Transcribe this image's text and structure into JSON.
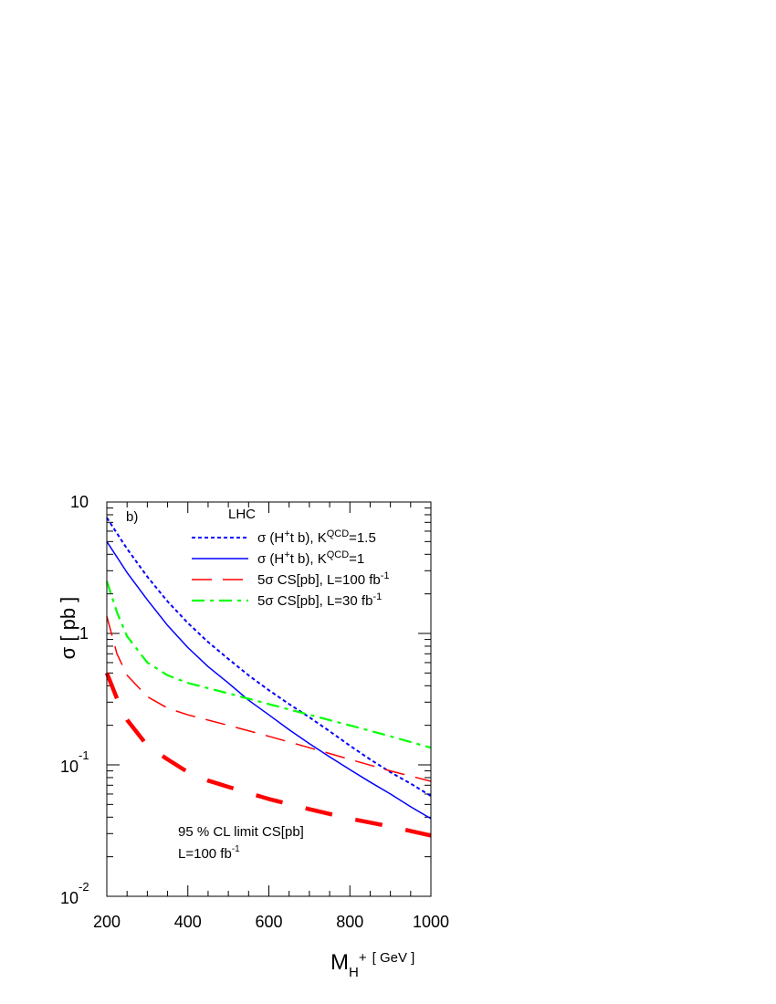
{
  "chart_data": {
    "type": "line",
    "panel_label": "b)",
    "collider_label": "LHC",
    "xlabel": {
      "main": "M",
      "sub": "H",
      "sup": "+",
      "unit": "[ GeV ]"
    },
    "ylabel": "σ [ pb ]",
    "xlim": [
      200,
      1000
    ],
    "ylim": [
      0.01,
      10
    ],
    "yscale": "log",
    "x_ticks": [
      200,
      400,
      600,
      800,
      1000
    ],
    "y_tick_labels": [
      {
        "value": 10,
        "base": "10",
        "exp": ""
      },
      {
        "value": 1,
        "base": "1",
        "exp": ""
      },
      {
        "value": 0.1,
        "base": "10",
        "exp": "-1"
      },
      {
        "value": 0.01,
        "base": "10",
        "exp": "-2"
      }
    ],
    "legend_position": "top-right",
    "series": [
      {
        "id": "sigma15",
        "legend": {
          "pre": "σ (H",
          "sup1": "+",
          "mid": "t b), K",
          "sup2": "QCD",
          "post": "=1.5"
        },
        "color": "#0000ff",
        "style": "dotted",
        "x": [
          200,
          250,
          300,
          350,
          400,
          450,
          500,
          550,
          600,
          650,
          700,
          750,
          800,
          850,
          900,
          950,
          1000
        ],
        "y": [
          7.6,
          4.4,
          2.7,
          1.75,
          1.2,
          0.86,
          0.64,
          0.48,
          0.37,
          0.29,
          0.23,
          0.18,
          0.14,
          0.11,
          0.088,
          0.072,
          0.058
        ]
      },
      {
        "id": "sigma1",
        "legend": {
          "pre": "σ (H",
          "sup1": "+",
          "mid": "t b), K",
          "sup2": "QCD",
          "post": "=1"
        },
        "color": "#0000ff",
        "style": "solid",
        "x": [
          200,
          250,
          300,
          350,
          400,
          450,
          500,
          550,
          600,
          650,
          700,
          750,
          800,
          850,
          900,
          950,
          1000
        ],
        "y": [
          5.0,
          2.9,
          1.8,
          1.15,
          0.78,
          0.56,
          0.42,
          0.31,
          0.24,
          0.185,
          0.145,
          0.115,
          0.092,
          0.074,
          0.06,
          0.048,
          0.039
        ]
      },
      {
        "id": "cs100",
        "legend": {
          "pre": "5σ  CS[pb], L=100 fb",
          "sup1": "-1",
          "mid": "",
          "sup2": "",
          "post": ""
        },
        "color": "#ff0000",
        "style": "dashed",
        "x": [
          200,
          225,
          250,
          300,
          350,
          400,
          500,
          600,
          700,
          800,
          900,
          1000
        ],
        "y": [
          1.35,
          0.7,
          0.48,
          0.33,
          0.27,
          0.24,
          0.2,
          0.165,
          0.135,
          0.11,
          0.09,
          0.075
        ]
      },
      {
        "id": "cs30",
        "legend": {
          "pre": "5σ  CS[pb], L=30 fb",
          "sup1": "-1",
          "mid": "",
          "sup2": "",
          "post": ""
        },
        "color": "#00ff00",
        "style": "dashdot",
        "x": [
          200,
          225,
          250,
          300,
          350,
          400,
          500,
          600,
          700,
          800,
          900,
          1000
        ],
        "y": [
          2.5,
          1.45,
          0.95,
          0.6,
          0.48,
          0.42,
          0.35,
          0.29,
          0.24,
          0.2,
          0.165,
          0.135
        ]
      },
      {
        "id": "cl95",
        "legend": null,
        "color": "#ff0000",
        "style": "thick-dashed",
        "x": [
          200,
          225,
          250,
          300,
          350,
          400,
          450,
          500,
          600,
          700,
          800,
          900,
          1000
        ],
        "y": [
          0.5,
          0.32,
          0.22,
          0.14,
          0.11,
          0.088,
          0.076,
          0.068,
          0.055,
          0.046,
          0.039,
          0.034,
          0.029
        ]
      }
    ],
    "annotation": {
      "line1": "95 % CL limit CS[pb]",
      "line2_pre": "L=100 fb",
      "line2_sup": "-1"
    }
  }
}
